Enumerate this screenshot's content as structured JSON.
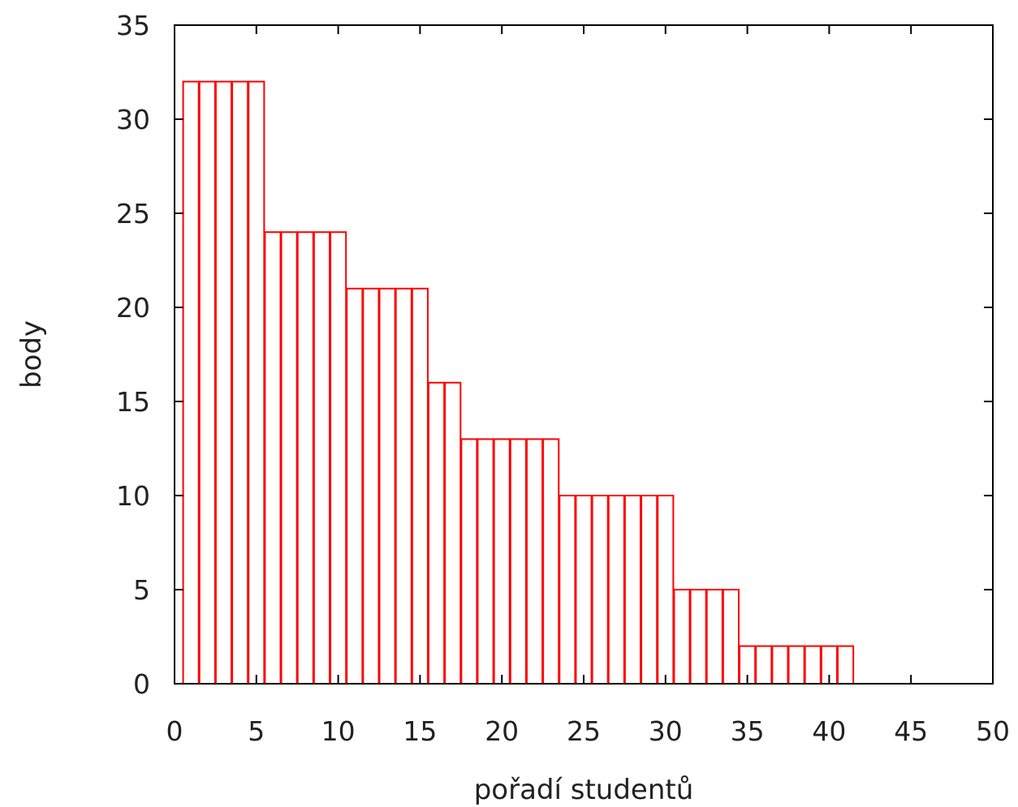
{
  "chart_data": {
    "type": "bar",
    "xlabel": "pořadí studentů",
    "ylabel": "body",
    "xlim": [
      0,
      50
    ],
    "ylim": [
      0,
      35
    ],
    "x_ticks": [
      "0",
      "5",
      "10",
      "15",
      "20",
      "25",
      "30",
      "35",
      "40",
      "45",
      "50"
    ],
    "y_ticks": [
      "0",
      "5",
      "10",
      "15",
      "20",
      "25",
      "30",
      "35"
    ],
    "bar_color": "#ff0000",
    "grid": false,
    "x": [
      1,
      2,
      3,
      4,
      5,
      6,
      7,
      8,
      9,
      10,
      11,
      12,
      13,
      14,
      15,
      16,
      17,
      18,
      19,
      20,
      21,
      22,
      23,
      24,
      25,
      26,
      27,
      28,
      29,
      30,
      31,
      32,
      33,
      34,
      35,
      36,
      37,
      38,
      39,
      40,
      41
    ],
    "values": [
      32,
      32,
      32,
      32,
      32,
      24,
      24,
      24,
      24,
      24,
      21,
      21,
      21,
      21,
      21,
      16,
      16,
      13,
      13,
      13,
      13,
      13,
      13,
      10,
      10,
      10,
      10,
      10,
      10,
      10,
      5,
      5,
      5,
      5,
      2,
      2,
      2,
      2,
      2,
      2,
      2
    ]
  }
}
